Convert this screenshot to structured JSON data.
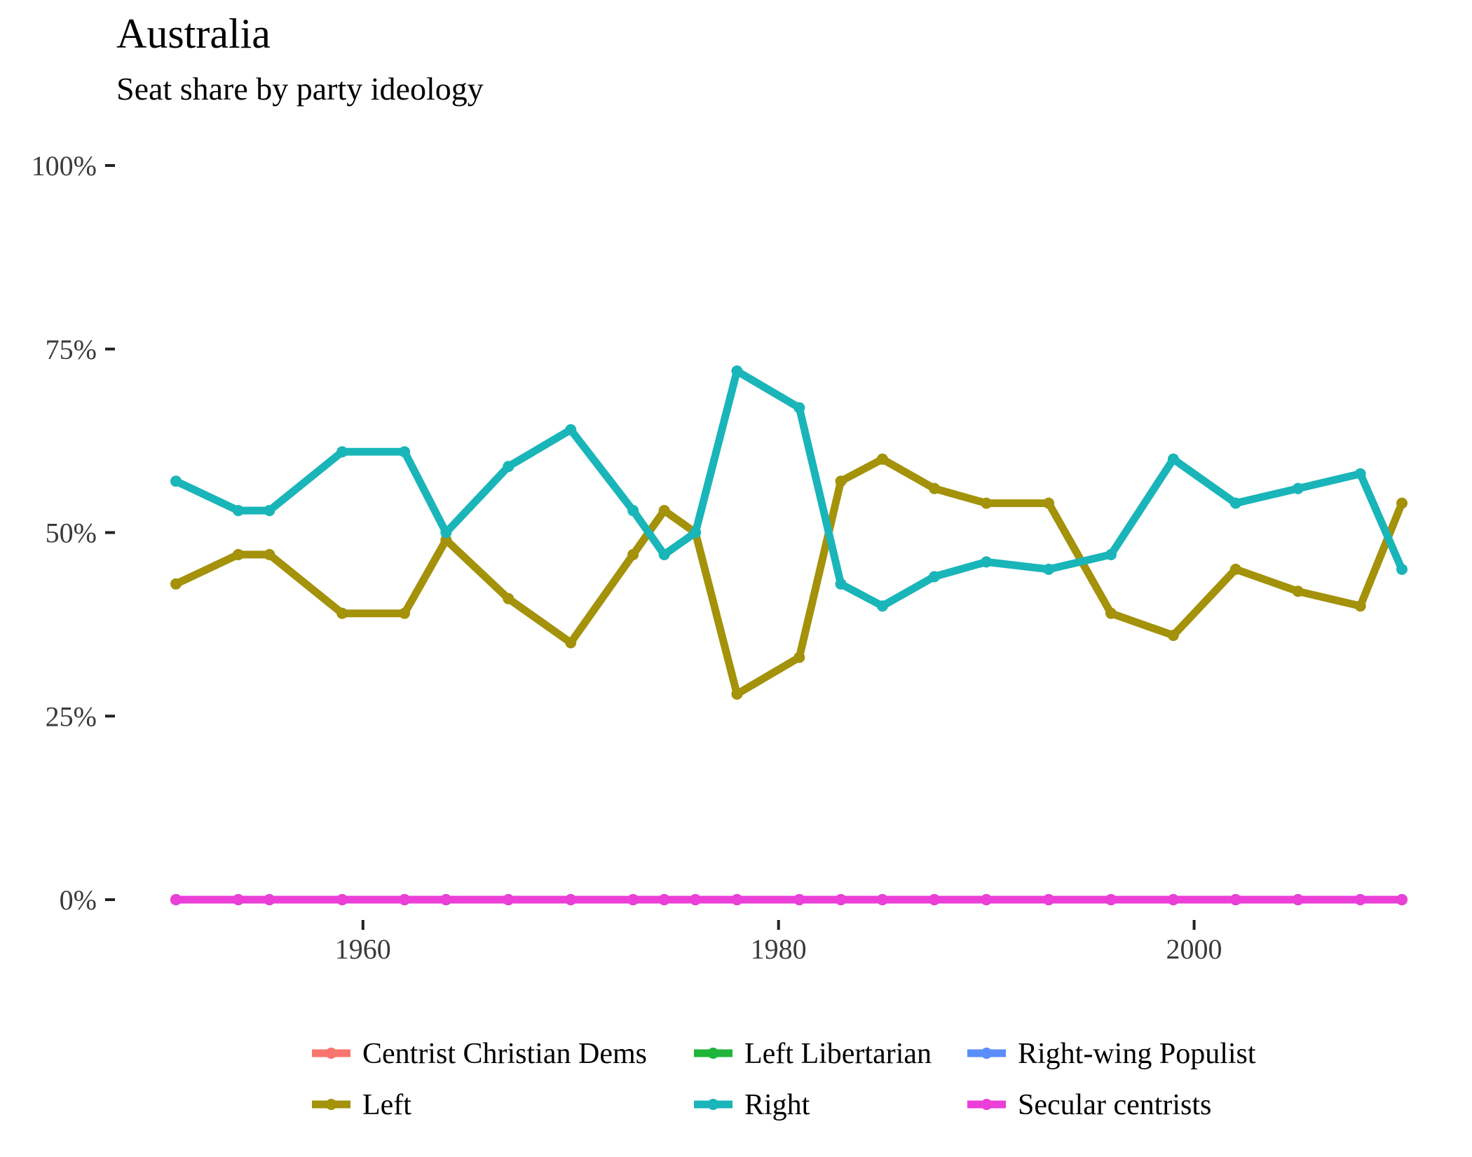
{
  "chart_data": {
    "type": "line",
    "title": "Australia",
    "subtitle": "Seat share by party ideology",
    "xlabel": "",
    "ylabel": "",
    "xlim": [
      1951,
      2010
    ],
    "ylim": [
      0,
      100
    ],
    "x_ticks": [
      1960,
      1980,
      2000
    ],
    "y_ticks": [
      0,
      25,
      50,
      75,
      100
    ],
    "y_tick_labels": [
      "0%",
      "25%",
      "50%",
      "75%",
      "100%"
    ],
    "grid": false,
    "legend_position": "bottom",
    "x": [
      1951,
      1954,
      1955.5,
      1959,
      1962,
      1964,
      1967,
      1970,
      1973,
      1974.5,
      1976,
      1978,
      1981,
      1983,
      1985,
      1987.5,
      1990,
      1993,
      1996,
      1999,
      2002,
      2005,
      2008,
      2010
    ],
    "series": [
      {
        "name": "Centrist Christian Dems",
        "color": "#F8766D",
        "values": [
          0,
          0,
          0,
          0,
          0,
          0,
          0,
          0,
          0,
          0,
          0,
          0,
          0,
          0,
          0,
          0,
          0,
          0,
          0,
          0,
          0,
          0,
          0,
          0
        ]
      },
      {
        "name": "Left Libertarian",
        "color": "#1FB53A",
        "values": [
          0,
          0,
          0,
          0,
          0,
          0,
          0,
          0,
          0,
          0,
          0,
          0,
          0,
          0,
          0,
          0,
          0,
          0,
          0,
          0,
          0,
          0,
          0,
          0
        ]
      },
      {
        "name": "Right-wing Populist",
        "color": "#5B8EFB",
        "values": [
          0,
          0,
          0,
          0,
          0,
          0,
          0,
          0,
          0,
          0,
          0,
          0,
          0,
          0,
          0,
          0,
          0,
          0,
          0,
          0,
          0,
          0,
          0,
          0
        ]
      },
      {
        "name": "Left",
        "color": "#A3920A",
        "values": [
          43,
          47,
          47,
          39,
          39,
          49,
          41,
          35,
          47,
          53,
          50,
          28,
          33,
          57,
          60,
          56,
          54,
          54,
          39,
          36,
          45,
          42,
          40,
          54
        ]
      },
      {
        "name": "Right",
        "color": "#19B5B9",
        "values": [
          57,
          53,
          53,
          61,
          61,
          50,
          59,
          64,
          53,
          47,
          50,
          72,
          67,
          43,
          40,
          44,
          46,
          45,
          47,
          60,
          54,
          56,
          58,
          45
        ]
      },
      {
        "name": "Secular centrists",
        "color": "#EB3FD8",
        "values": [
          0,
          0,
          0,
          0,
          0,
          0,
          0,
          0,
          0,
          0,
          0,
          0,
          0,
          0,
          0,
          0,
          0,
          0,
          0,
          0,
          0,
          0,
          0,
          0
        ]
      }
    ]
  }
}
